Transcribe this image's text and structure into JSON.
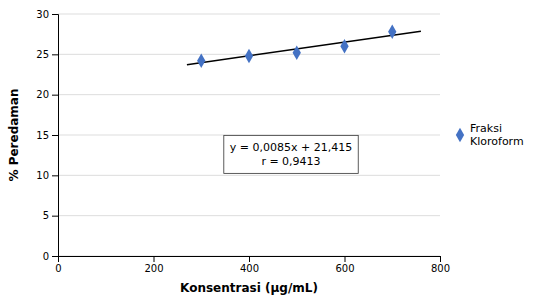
{
  "chart_data": {
    "type": "scatter",
    "xlabel": "Konsentrasi (μg/mL)",
    "ylabel": "% Peredaman",
    "xlim": [
      0,
      800
    ],
    "ylim": [
      0,
      30
    ],
    "xticks": [
      0,
      200,
      400,
      600,
      800
    ],
    "yticks": [
      0,
      5,
      10,
      15,
      20,
      25,
      30
    ],
    "grid": true,
    "legend": "right",
    "annotations": [
      "y = 0,0085x + 21,415",
      "r = 0,9413"
    ],
    "series": [
      {
        "name": "Fraksi\nKloroform",
        "type": "scatter",
        "marker": "diamond",
        "color": "#4472C4",
        "x": [
          300,
          400,
          500,
          600,
          700
        ],
        "values": [
          24.2,
          24.8,
          25.2,
          26.0,
          27.8
        ]
      },
      {
        "type": "line",
        "line_style": "solid",
        "color": "#000000",
        "x": [
          270,
          760
        ],
        "values": [
          23.71,
          27.875
        ]
      }
    ]
  }
}
